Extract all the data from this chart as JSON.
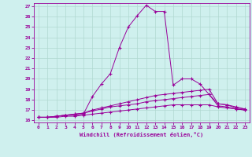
{
  "xlabel": "Windchill (Refroidissement éolien,°C)",
  "background_color": "#cff0ee",
  "grid_color": "#b0d8d0",
  "line_color": "#990099",
  "xlim": [
    0,
    23
  ],
  "ylim": [
    16,
    27
  ],
  "y_ticks": [
    16,
    17,
    18,
    19,
    20,
    21,
    22,
    23,
    24,
    25,
    26,
    27
  ],
  "x_ticks": [
    0,
    1,
    2,
    3,
    4,
    5,
    6,
    7,
    8,
    9,
    10,
    11,
    12,
    13,
    14,
    15,
    16,
    17,
    18,
    19,
    20,
    21,
    22,
    23
  ],
  "line1_x": [
    0,
    1,
    2,
    3,
    4,
    5,
    6,
    7,
    8,
    9,
    10,
    11,
    12,
    13,
    14,
    15,
    16,
    17,
    18,
    19,
    20,
    21,
    22,
    23
  ],
  "line1_y": [
    16.3,
    16.3,
    16.4,
    16.5,
    16.5,
    16.6,
    18.3,
    19.5,
    20.5,
    23.0,
    25.0,
    26.1,
    27.1,
    26.5,
    26.5,
    19.4,
    20.0,
    20.0,
    19.5,
    18.5,
    17.6,
    17.5,
    17.2,
    17.1
  ],
  "line2_x": [
    0,
    1,
    2,
    3,
    4,
    5,
    6,
    7,
    8,
    9,
    10,
    11,
    12,
    13,
    14,
    15,
    16,
    17,
    18,
    19,
    20,
    21,
    22,
    23
  ],
  "line2_y": [
    16.3,
    16.3,
    16.4,
    16.5,
    16.6,
    16.7,
    17.0,
    17.2,
    17.4,
    17.6,
    17.8,
    18.0,
    18.2,
    18.4,
    18.5,
    18.6,
    18.7,
    18.8,
    18.9,
    19.0,
    17.6,
    17.5,
    17.3,
    17.1
  ],
  "line3_x": [
    0,
    1,
    2,
    3,
    4,
    5,
    6,
    7,
    8,
    9,
    10,
    11,
    12,
    13,
    14,
    15,
    16,
    17,
    18,
    19,
    20,
    21,
    22,
    23
  ],
  "line3_y": [
    16.3,
    16.3,
    16.4,
    16.5,
    16.6,
    16.7,
    16.9,
    17.1,
    17.3,
    17.4,
    17.5,
    17.6,
    17.8,
    17.9,
    18.0,
    18.1,
    18.2,
    18.3,
    18.4,
    18.5,
    17.4,
    17.3,
    17.1,
    17.0
  ],
  "line4_x": [
    0,
    1,
    2,
    3,
    4,
    5,
    6,
    7,
    8,
    9,
    10,
    11,
    12,
    13,
    14,
    15,
    16,
    17,
    18,
    19,
    20,
    21,
    22,
    23
  ],
  "line4_y": [
    16.3,
    16.3,
    16.3,
    16.4,
    16.4,
    16.5,
    16.6,
    16.7,
    16.8,
    16.9,
    17.0,
    17.1,
    17.2,
    17.3,
    17.4,
    17.5,
    17.5,
    17.5,
    17.5,
    17.5,
    17.3,
    17.2,
    17.1,
    17.0
  ]
}
